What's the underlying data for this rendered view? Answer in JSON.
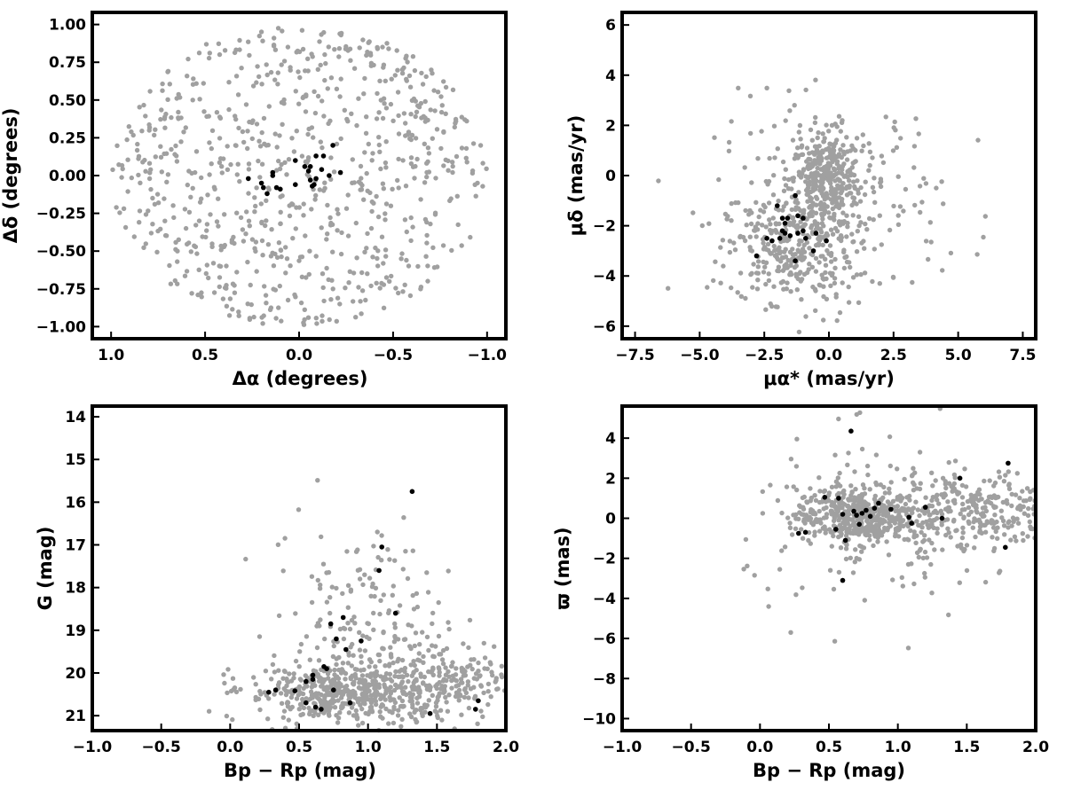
{
  "colors": {
    "field": "#a0a0a0",
    "members": "#000000"
  },
  "chart_data": [
    {
      "type": "scatter",
      "xlabel": "Δα (degrees)",
      "ylabel": "Δδ (degrees)",
      "xlim": [
        1.1,
        -1.1
      ],
      "ylim": [
        -1.08,
        1.08
      ],
      "xticks": [
        "1.0",
        "0.5",
        "0.0",
        "−0.5",
        "−1.0"
      ],
      "yticks": [
        "1.00",
        "0.75",
        "0.50",
        "0.25",
        "0.00",
        "−0.25",
        "−0.50",
        "−0.75",
        "−1.00"
      ],
      "series": [
        {
          "role": "field",
          "distribution": {
            "shape": "disk",
            "center": [
              0,
              0
            ],
            "radius": 1.0,
            "count": 780
          }
        },
        {
          "role": "members",
          "points": [
            [
              0.27,
              -0.02
            ],
            [
              0.2,
              -0.05
            ],
            [
              0.19,
              -0.08
            ],
            [
              0.14,
              0.02
            ],
            [
              0.14,
              0.0
            ],
            [
              0.12,
              -0.08
            ],
            [
              0.1,
              -0.09
            ],
            [
              0.02,
              0.1
            ],
            [
              0.02,
              -0.06
            ],
            [
              -0.03,
              0.06
            ],
            [
              -0.05,
              0.03
            ],
            [
              -0.06,
              0.06
            ],
            [
              -0.07,
              -0.07
            ],
            [
              -0.08,
              -0.06
            ],
            [
              -0.09,
              -0.02
            ],
            [
              -0.09,
              0.13
            ],
            [
              -0.12,
              0.04
            ],
            [
              -0.13,
              0.13
            ],
            [
              -0.16,
              0.0
            ],
            [
              -0.18,
              0.2
            ],
            [
              -0.22,
              0.02
            ],
            [
              -0.06,
              -0.03
            ],
            [
              0.17,
              -0.12
            ]
          ]
        }
      ]
    },
    {
      "type": "scatter",
      "xlabel": "μα* (mas/yr)",
      "ylabel": "μδ (mas/yr)",
      "xlim": [
        -8,
        8
      ],
      "ylim": [
        -6.5,
        6.5
      ],
      "xticks": [
        "−7.5",
        "−5.0",
        "−2.5",
        "0.0",
        "2.5",
        "5.0",
        "7.5"
      ],
      "yticks": [
        "6",
        "4",
        "2",
        "0",
        "−2",
        "−4",
        "−6"
      ],
      "series": [
        {
          "role": "field",
          "clusters": [
            {
              "center": [
                -0.1,
                -0.2
              ],
              "spread": [
                0.7,
                0.9
              ],
              "count": 300
            },
            {
              "center": [
                -1.5,
                -3.0
              ],
              "spread": [
                1.2,
                1.0
              ],
              "count": 260
            },
            {
              "center": [
                0.0,
                -1.0
              ],
              "spread": [
                2.2,
                2.0
              ],
              "count": 260
            }
          ]
        },
        {
          "role": "members",
          "points": [
            [
              -2.8,
              -3.2
            ],
            [
              -2.4,
              -2.5
            ],
            [
              -2.2,
              -2.6
            ],
            [
              -2.0,
              -1.2
            ],
            [
              -1.9,
              -2.5
            ],
            [
              -1.8,
              -2.2
            ],
            [
              -1.8,
              -1.7
            ],
            [
              -1.7,
              -2.3
            ],
            [
              -1.7,
              -1.9
            ],
            [
              -1.6,
              -1.7
            ],
            [
              -1.5,
              -2.4
            ],
            [
              -1.3,
              -0.8
            ],
            [
              -1.3,
              -3.4
            ],
            [
              -1.2,
              -1.6
            ],
            [
              -1.2,
              -2.3
            ],
            [
              -1.0,
              -1.7
            ],
            [
              -1.0,
              -2.2
            ],
            [
              -0.9,
              -2.5
            ],
            [
              -0.6,
              -3.0
            ],
            [
              -0.1,
              -2.6
            ],
            [
              -0.5,
              -2.3
            ]
          ]
        }
      ]
    },
    {
      "type": "scatter",
      "xlabel": "Bp − Rp (mag)",
      "ylabel": "G (mag)",
      "xlim": [
        -1,
        2
      ],
      "ylim": [
        21.35,
        13.75
      ],
      "xticks": [
        "−1.0",
        "−0.5",
        "0.0",
        "0.5",
        "1.0",
        "1.5",
        "2.0"
      ],
      "yticks": [
        "21",
        "20",
        "19",
        "18",
        "17",
        "16",
        "15",
        "14"
      ],
      "series": [
        {
          "role": "field",
          "clusters": [
            {
              "center": [
                0.75,
                20.45
              ],
              "spread": [
                0.3,
                0.35
              ],
              "count": 420
            },
            {
              "center": [
                1.5,
                20.25
              ],
              "spread": [
                0.3,
                0.5
              ],
              "count": 280
            },
            {
              "center": [
                0.95,
                18.8
              ],
              "spread": [
                0.3,
                1.1
              ],
              "count": 160
            }
          ]
        },
        {
          "role": "members",
          "points": [
            [
              0.28,
              20.45
            ],
            [
              0.33,
              20.4
            ],
            [
              0.47,
              20.42
            ],
            [
              0.55,
              20.7
            ],
            [
              0.55,
              20.2
            ],
            [
              0.6,
              20.15
            ],
            [
              0.6,
              20.05
            ],
            [
              0.62,
              20.8
            ],
            [
              0.66,
              20.85
            ],
            [
              0.68,
              19.85
            ],
            [
              0.7,
              19.9
            ],
            [
              0.73,
              18.85
            ],
            [
              0.75,
              20.4
            ],
            [
              0.77,
              19.2
            ],
            [
              0.82,
              18.7
            ],
            [
              0.84,
              19.45
            ],
            [
              0.87,
              20.7
            ],
            [
              0.95,
              19.25
            ],
            [
              1.08,
              17.6
            ],
            [
              1.1,
              17.05
            ],
            [
              1.2,
              18.6
            ],
            [
              1.32,
              15.75
            ],
            [
              1.45,
              20.95
            ],
            [
              1.78,
              20.85
            ],
            [
              1.8,
              20.65
            ]
          ]
        }
      ]
    },
    {
      "type": "scatter",
      "xlabel": "Bp − Rp (mag)",
      "ylabel": "ϖ (mas)",
      "xlim": [
        -1,
        2
      ],
      "ylim": [
        -10.6,
        5.6
      ],
      "xticks": [
        "−1.0",
        "−0.5",
        "0.0",
        "0.5",
        "1.0",
        "1.5",
        "2.0"
      ],
      "yticks": [
        "4",
        "2",
        "0",
        "−2",
        "−4",
        "−6",
        "−8",
        "−10"
      ],
      "series": [
        {
          "role": "field",
          "clusters": [
            {
              "center": [
                0.7,
                0.1
              ],
              "spread": [
                0.22,
                0.7
              ],
              "count": 420
            },
            {
              "center": [
                1.55,
                0.4
              ],
              "spread": [
                0.3,
                1.0
              ],
              "count": 280
            },
            {
              "center": [
                0.9,
                -0.5
              ],
              "spread": [
                0.5,
                2.2
              ],
              "count": 160
            }
          ]
        },
        {
          "role": "members",
          "points": [
            [
              0.28,
              -0.75
            ],
            [
              0.33,
              -0.7
            ],
            [
              0.47,
              1.05
            ],
            [
              0.55,
              -0.55
            ],
            [
              0.57,
              1.0
            ],
            [
              0.6,
              -3.1
            ],
            [
              0.62,
              -1.1
            ],
            [
              0.6,
              0.2
            ],
            [
              0.66,
              4.35
            ],
            [
              0.68,
              0.35
            ],
            [
              0.7,
              0.15
            ],
            [
              0.72,
              -0.3
            ],
            [
              0.74,
              0.25
            ],
            [
              0.77,
              0.4
            ],
            [
              0.8,
              0.1
            ],
            [
              0.83,
              0.5
            ],
            [
              0.86,
              0.75
            ],
            [
              0.95,
              0.45
            ],
            [
              1.08,
              0.05
            ],
            [
              1.1,
              -0.25
            ],
            [
              1.2,
              0.55
            ],
            [
              1.32,
              0.0
            ],
            [
              1.45,
              2.0
            ],
            [
              1.78,
              -1.45
            ],
            [
              1.8,
              2.75
            ]
          ]
        }
      ]
    }
  ]
}
